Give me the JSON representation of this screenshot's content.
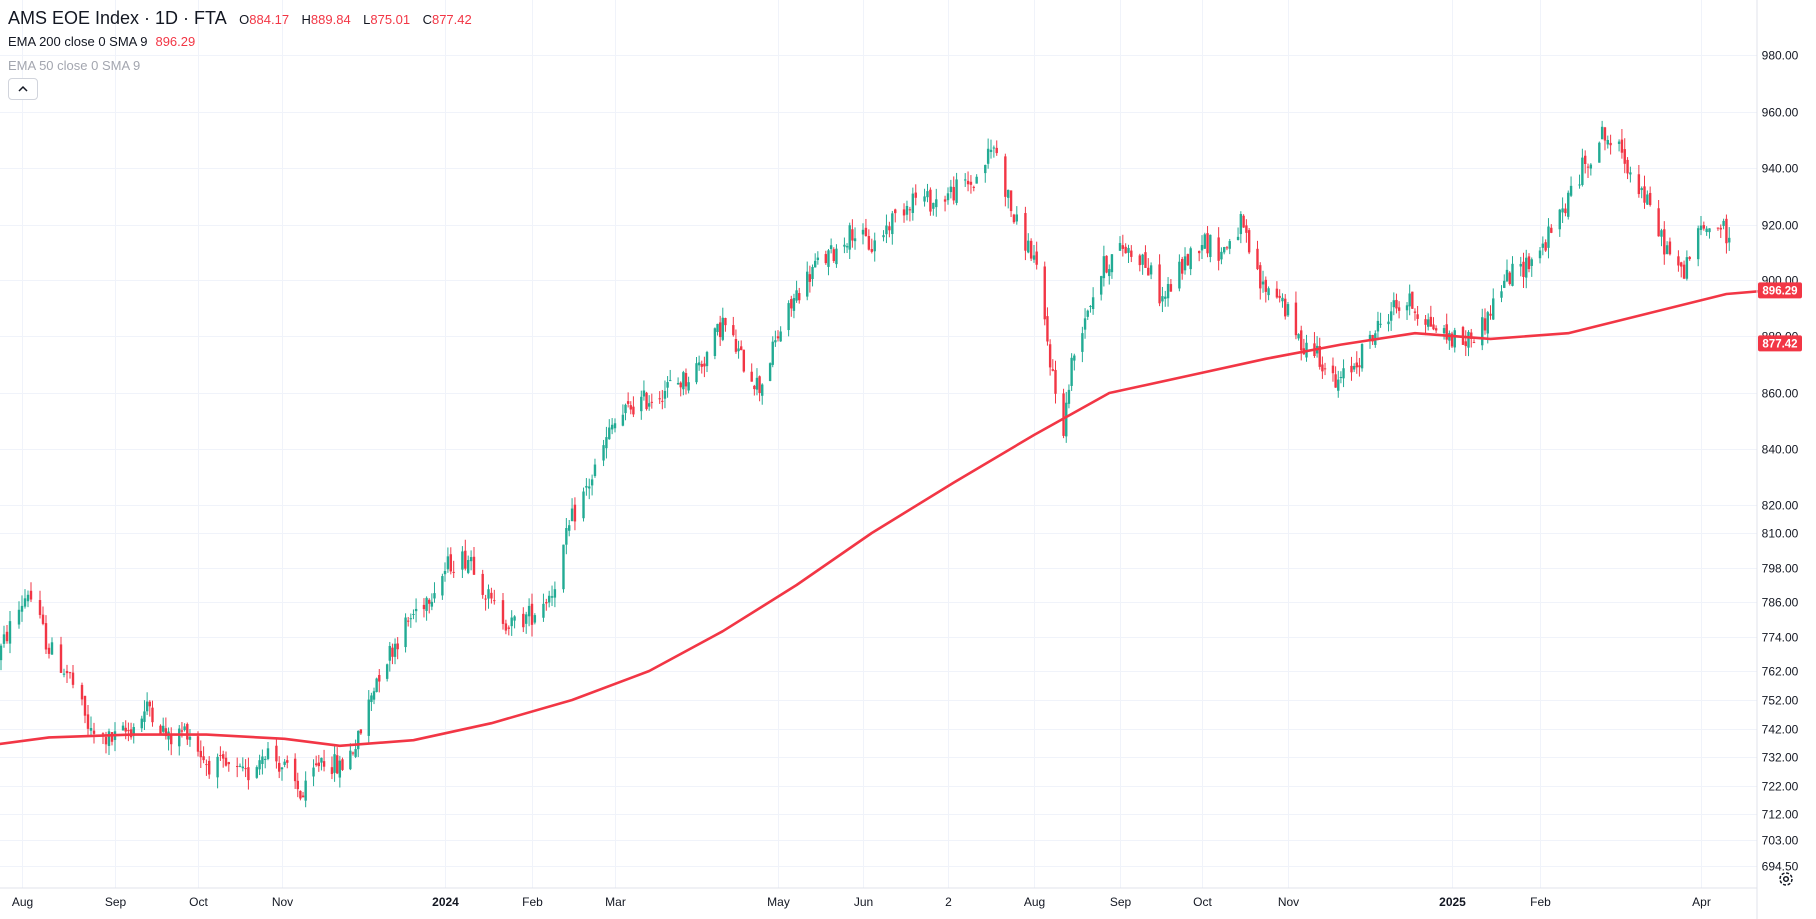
{
  "header": {
    "symbol": "AMS EOE Index · 1D · FTA",
    "ohlc": [
      {
        "label": "O",
        "value": "884.17"
      },
      {
        "label": "H",
        "value": "889.84"
      },
      {
        "label": "L",
        "value": "875.01"
      },
      {
        "label": "C",
        "value": "877.42"
      }
    ],
    "indicator_1": {
      "label": "EMA 200 close 0 SMA 9",
      "value": "896.29"
    },
    "indicator_2": {
      "label": "EMA 50 close 0 SMA 9"
    }
  },
  "icons": {
    "collapse": "chevron-up-icon",
    "settings": "gear-icon"
  },
  "colors": {
    "up": "#22ab94",
    "down": "#f23645",
    "ema": "#f23645",
    "grid": "#f0f3fa",
    "text": "#131722"
  },
  "chart_data": {
    "type": "candlestick",
    "y_axis": {
      "side": "right",
      "ticks": [
        "980.00",
        "960.00",
        "940.00",
        "920.00",
        "900.00",
        "880.00",
        "860.00",
        "840.00",
        "820.00",
        "810.00",
        "798.00",
        "786.00",
        "774.00",
        "762.00",
        "752.00",
        "742.00",
        "732.00",
        "722.00",
        "712.00",
        "703.00",
        "694.50"
      ]
    },
    "x_axis": {
      "ticks": [
        "Aug",
        "Sep",
        "Oct",
        "Nov",
        "2024",
        "Feb",
        "Mar",
        "May",
        "Jun",
        "2",
        "Aug",
        "Sep",
        "Oct",
        "Nov",
        "2025",
        "Feb",
        "Apr"
      ]
    },
    "price_labels": [
      {
        "series": "EMA 200",
        "value": "896.29"
      },
      {
        "series": "Close",
        "value": "877.42"
      }
    ],
    "close_path": [
      [
        "2023-07-20",
        756
      ],
      [
        "2023-07-27",
        775
      ],
      [
        "2023-08-03",
        790
      ],
      [
        "2023-08-10",
        770
      ],
      [
        "2023-08-17",
        760
      ],
      [
        "2023-08-24",
        740
      ],
      [
        "2023-08-31",
        738
      ],
      [
        "2023-09-07",
        742
      ],
      [
        "2023-09-14",
        750
      ],
      [
        "2023-09-21",
        738
      ],
      [
        "2023-09-28",
        742
      ],
      [
        "2023-10-05",
        730
      ],
      [
        "2023-10-12",
        728
      ],
      [
        "2023-10-19",
        725
      ],
      [
        "2023-10-26",
        735
      ],
      [
        "2023-11-02",
        728
      ],
      [
        "2023-11-09",
        718
      ],
      [
        "2023-11-16",
        732
      ],
      [
        "2023-11-23",
        728
      ],
      [
        "2023-11-30",
        738
      ],
      [
        "2023-12-07",
        760
      ],
      [
        "2023-12-14",
        772
      ],
      [
        "2023-12-21",
        782
      ],
      [
        "2023-12-28",
        790
      ],
      [
        "2024-01-04",
        800
      ],
      [
        "2024-01-11",
        802
      ],
      [
        "2024-01-18",
        785
      ],
      [
        "2024-01-25",
        778
      ],
      [
        "2024-02-01",
        782
      ],
      [
        "2024-02-08",
        790
      ],
      [
        "2024-02-15",
        815
      ],
      [
        "2024-02-22",
        830
      ],
      [
        "2024-02-29",
        848
      ],
      [
        "2024-03-07",
        855
      ],
      [
        "2024-03-14",
        858
      ],
      [
        "2024-03-21",
        862
      ],
      [
        "2024-03-28",
        865
      ],
      [
        "2024-04-04",
        872
      ],
      [
        "2024-04-11",
        885
      ],
      [
        "2024-04-18",
        872
      ],
      [
        "2024-04-25",
        862
      ],
      [
        "2024-05-02",
        880
      ],
      [
        "2024-05-09",
        895
      ],
      [
        "2024-05-16",
        905
      ],
      [
        "2024-05-23",
        910
      ],
      [
        "2024-05-30",
        918
      ],
      [
        "2024-06-06",
        912
      ],
      [
        "2024-06-13",
        922
      ],
      [
        "2024-06-20",
        930
      ],
      [
        "2024-06-27",
        928
      ],
      [
        "2024-07-04",
        932
      ],
      [
        "2024-07-11",
        935
      ],
      [
        "2024-07-18",
        948
      ],
      [
        "2024-07-25",
        922
      ],
      [
        "2024-08-01",
        908
      ],
      [
        "2024-08-06",
        878
      ],
      [
        "2024-08-09",
        860
      ],
      [
        "2024-08-12",
        848
      ],
      [
        "2024-08-15",
        870
      ],
      [
        "2024-08-20",
        888
      ],
      [
        "2024-08-27",
        905
      ],
      [
        "2024-09-03",
        912
      ],
      [
        "2024-09-10",
        908
      ],
      [
        "2024-09-17",
        893
      ],
      [
        "2024-09-24",
        905
      ],
      [
        "2024-10-01",
        915
      ],
      [
        "2024-10-08",
        910
      ],
      [
        "2024-10-15",
        920
      ],
      [
        "2024-10-22",
        898
      ],
      [
        "2024-10-29",
        895
      ],
      [
        "2024-11-05",
        878
      ],
      [
        "2024-11-12",
        875
      ],
      [
        "2024-11-19",
        862
      ],
      [
        "2024-11-26",
        870
      ],
      [
        "2024-12-03",
        880
      ],
      [
        "2024-12-10",
        890
      ],
      [
        "2024-12-17",
        892
      ],
      [
        "2024-12-24",
        885
      ],
      [
        "2024-12-31",
        880
      ],
      [
        "2025-01-07",
        878
      ],
      [
        "2025-01-14",
        885
      ],
      [
        "2025-01-21",
        900
      ],
      [
        "2025-01-28",
        905
      ],
      [
        "2025-02-04",
        912
      ],
      [
        "2025-02-11",
        925
      ],
      [
        "2025-02-18",
        940
      ],
      [
        "2025-02-25",
        952
      ],
      [
        "2025-03-04",
        945
      ],
      [
        "2025-03-11",
        932
      ],
      [
        "2025-03-18",
        915
      ],
      [
        "2025-03-25",
        902
      ],
      [
        "2025-04-01",
        918
      ],
      [
        "2025-04-08",
        920
      ],
      [
        "2025-04-15",
        905
      ],
      [
        "2025-04-22",
        884
      ],
      [
        "2025-04-25",
        877.42
      ]
    ],
    "ema_200": [
      [
        "2023-07-20",
        736
      ],
      [
        "2023-08-10",
        739
      ],
      [
        "2023-09-07",
        740
      ],
      [
        "2023-10-05",
        740
      ],
      [
        "2023-11-02",
        738.5
      ],
      [
        "2023-11-23",
        736
      ],
      [
        "2023-12-21",
        738
      ],
      [
        "2024-01-18",
        744
      ],
      [
        "2024-02-15",
        752
      ],
      [
        "2024-03-14",
        762
      ],
      [
        "2024-04-11",
        776
      ],
      [
        "2024-05-09",
        792
      ],
      [
        "2024-06-06",
        810
      ],
      [
        "2024-07-04",
        828
      ],
      [
        "2024-08-01",
        845
      ],
      [
        "2024-08-29",
        860
      ],
      [
        "2024-09-26",
        866
      ],
      [
        "2024-10-24",
        872
      ],
      [
        "2024-11-21",
        877
      ],
      [
        "2024-12-19",
        881
      ],
      [
        "2025-01-16",
        879
      ],
      [
        "2025-02-13",
        881
      ],
      [
        "2025-03-13",
        888
      ],
      [
        "2025-04-10",
        895
      ],
      [
        "2025-04-25",
        896.29
      ]
    ]
  }
}
